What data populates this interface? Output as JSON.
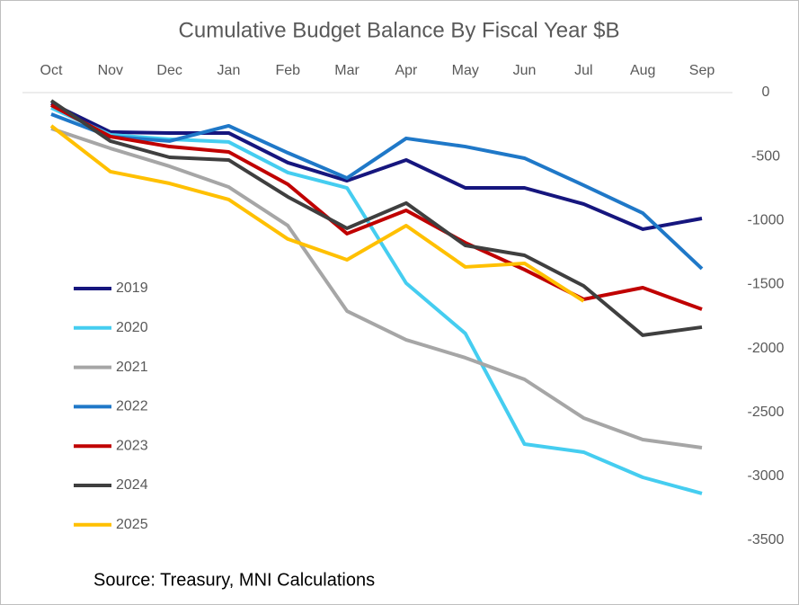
{
  "chart_data": {
    "type": "line",
    "title": "Cumulative Budget Balance By Fiscal Year $B",
    "annotation": "Source: Treasury, MNI Calculations",
    "categories": [
      "Oct",
      "Nov",
      "Dec",
      "Jan",
      "Feb",
      "Mar",
      "Apr",
      "May",
      "Jun",
      "Jul",
      "Aug",
      "Sep"
    ],
    "series": [
      {
        "name": "2019",
        "color": "#16167e",
        "values": [
          -84,
          -309,
          -316,
          -316,
          -548,
          -689,
          -527,
          -745,
          -745,
          -871,
          -1068,
          -984
        ]
      },
      {
        "name": "2020",
        "color": "#45cdf0",
        "values": [
          -119,
          -330,
          -365,
          -386,
          -625,
          -745,
          -1490,
          -1883,
          -2748,
          -2811,
          -3008,
          -3134
        ]
      },
      {
        "name": "2021",
        "color": "#a6a6a6",
        "values": [
          -281,
          -436,
          -576,
          -738,
          -1040,
          -1708,
          -1933,
          -2073,
          -2242,
          -2544,
          -2713,
          -2776
        ]
      },
      {
        "name": "2022",
        "color": "#1f78c8",
        "values": [
          -169,
          -344,
          -379,
          -260,
          -471,
          -668,
          -358,
          -422,
          -513,
          -724,
          -942,
          -1377
        ]
      },
      {
        "name": "2023",
        "color": "#c00000",
        "values": [
          -98,
          -344,
          -422,
          -464,
          -717,
          -1103,
          -921,
          -1174,
          -1384,
          -1616,
          -1525,
          -1694
        ]
      },
      {
        "name": "2024",
        "color": "#3f3f3f",
        "values": [
          -63,
          -379,
          -506,
          -527,
          -815,
          -1061,
          -864,
          -1195,
          -1272,
          -1511,
          -1897,
          -1834
        ]
      },
      {
        "name": "2025",
        "color": "#ffc000",
        "values": [
          -260,
          -618,
          -710,
          -836,
          -1145,
          -1307,
          -1040,
          -1363,
          -1335,
          -1630,
          null,
          null
        ]
      }
    ],
    "ylim": [
      -3500,
      0
    ],
    "yticks": [
      0,
      -500,
      -1000,
      -1500,
      -2000,
      -2500,
      -3000,
      -3500
    ],
    "y_axis_side": "right",
    "x_axis_side": "top",
    "grid": false,
    "legend": "left"
  }
}
